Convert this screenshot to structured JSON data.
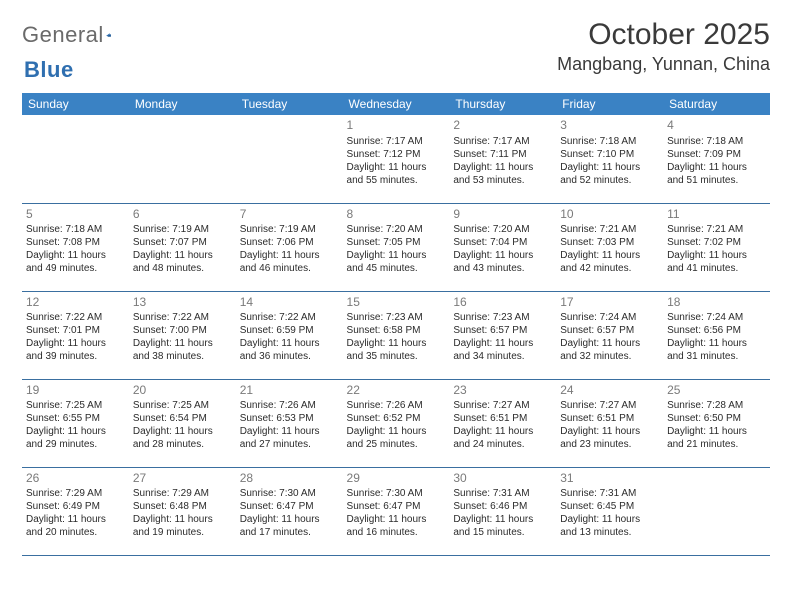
{
  "brand": {
    "text1": "General",
    "text2": "Blue"
  },
  "title": "October 2025",
  "location": "Mangbang, Yunnan, China",
  "colors": {
    "header_bg": "#3a82c4",
    "header_text": "#ffffff",
    "cell_border": "#3a6fa0",
    "daynum": "#7a7a7a",
    "body_text": "#2b2b2b",
    "logo_gray": "#6a6a6a",
    "logo_blue": "#2f6fb0"
  },
  "weekdays": [
    "Sunday",
    "Monday",
    "Tuesday",
    "Wednesday",
    "Thursday",
    "Friday",
    "Saturday"
  ],
  "weeks": [
    [
      null,
      null,
      null,
      {
        "n": "1",
        "sr": "7:17 AM",
        "ss": "7:12 PM",
        "dl": "11 hours and 55 minutes."
      },
      {
        "n": "2",
        "sr": "7:17 AM",
        "ss": "7:11 PM",
        "dl": "11 hours and 53 minutes."
      },
      {
        "n": "3",
        "sr": "7:18 AM",
        "ss": "7:10 PM",
        "dl": "11 hours and 52 minutes."
      },
      {
        "n": "4",
        "sr": "7:18 AM",
        "ss": "7:09 PM",
        "dl": "11 hours and 51 minutes."
      }
    ],
    [
      {
        "n": "5",
        "sr": "7:18 AM",
        "ss": "7:08 PM",
        "dl": "11 hours and 49 minutes."
      },
      {
        "n": "6",
        "sr": "7:19 AM",
        "ss": "7:07 PM",
        "dl": "11 hours and 48 minutes."
      },
      {
        "n": "7",
        "sr": "7:19 AM",
        "ss": "7:06 PM",
        "dl": "11 hours and 46 minutes."
      },
      {
        "n": "8",
        "sr": "7:20 AM",
        "ss": "7:05 PM",
        "dl": "11 hours and 45 minutes."
      },
      {
        "n": "9",
        "sr": "7:20 AM",
        "ss": "7:04 PM",
        "dl": "11 hours and 43 minutes."
      },
      {
        "n": "10",
        "sr": "7:21 AM",
        "ss": "7:03 PM",
        "dl": "11 hours and 42 minutes."
      },
      {
        "n": "11",
        "sr": "7:21 AM",
        "ss": "7:02 PM",
        "dl": "11 hours and 41 minutes."
      }
    ],
    [
      {
        "n": "12",
        "sr": "7:22 AM",
        "ss": "7:01 PM",
        "dl": "11 hours and 39 minutes."
      },
      {
        "n": "13",
        "sr": "7:22 AM",
        "ss": "7:00 PM",
        "dl": "11 hours and 38 minutes."
      },
      {
        "n": "14",
        "sr": "7:22 AM",
        "ss": "6:59 PM",
        "dl": "11 hours and 36 minutes."
      },
      {
        "n": "15",
        "sr": "7:23 AM",
        "ss": "6:58 PM",
        "dl": "11 hours and 35 minutes."
      },
      {
        "n": "16",
        "sr": "7:23 AM",
        "ss": "6:57 PM",
        "dl": "11 hours and 34 minutes."
      },
      {
        "n": "17",
        "sr": "7:24 AM",
        "ss": "6:57 PM",
        "dl": "11 hours and 32 minutes."
      },
      {
        "n": "18",
        "sr": "7:24 AM",
        "ss": "6:56 PM",
        "dl": "11 hours and 31 minutes."
      }
    ],
    [
      {
        "n": "19",
        "sr": "7:25 AM",
        "ss": "6:55 PM",
        "dl": "11 hours and 29 minutes."
      },
      {
        "n": "20",
        "sr": "7:25 AM",
        "ss": "6:54 PM",
        "dl": "11 hours and 28 minutes."
      },
      {
        "n": "21",
        "sr": "7:26 AM",
        "ss": "6:53 PM",
        "dl": "11 hours and 27 minutes."
      },
      {
        "n": "22",
        "sr": "7:26 AM",
        "ss": "6:52 PM",
        "dl": "11 hours and 25 minutes."
      },
      {
        "n": "23",
        "sr": "7:27 AM",
        "ss": "6:51 PM",
        "dl": "11 hours and 24 minutes."
      },
      {
        "n": "24",
        "sr": "7:27 AM",
        "ss": "6:51 PM",
        "dl": "11 hours and 23 minutes."
      },
      {
        "n": "25",
        "sr": "7:28 AM",
        "ss": "6:50 PM",
        "dl": "11 hours and 21 minutes."
      }
    ],
    [
      {
        "n": "26",
        "sr": "7:29 AM",
        "ss": "6:49 PM",
        "dl": "11 hours and 20 minutes."
      },
      {
        "n": "27",
        "sr": "7:29 AM",
        "ss": "6:48 PM",
        "dl": "11 hours and 19 minutes."
      },
      {
        "n": "28",
        "sr": "7:30 AM",
        "ss": "6:47 PM",
        "dl": "11 hours and 17 minutes."
      },
      {
        "n": "29",
        "sr": "7:30 AM",
        "ss": "6:47 PM",
        "dl": "11 hours and 16 minutes."
      },
      {
        "n": "30",
        "sr": "7:31 AM",
        "ss": "6:46 PM",
        "dl": "11 hours and 15 minutes."
      },
      {
        "n": "31",
        "sr": "7:31 AM",
        "ss": "6:45 PM",
        "dl": "11 hours and 13 minutes."
      },
      null
    ]
  ],
  "labels": {
    "sunrise": "Sunrise:",
    "sunset": "Sunset:",
    "daylight": "Daylight:"
  }
}
